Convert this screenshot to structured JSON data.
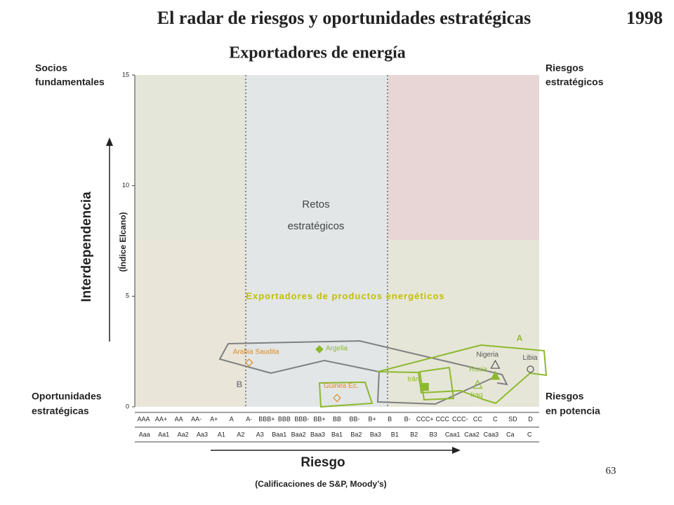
{
  "chart_data": {
    "type": "scatter",
    "title": "El radar de riesgos y oportunidades estratégicas",
    "year": "1998",
    "subtitle": "Exportadores de energía",
    "corner_labels": {
      "top_left": [
        "Socios",
        "fundamentales"
      ],
      "top_right": [
        "Riesgos",
        "estratégicos"
      ],
      "bottom_left": [
        "Oportunidades",
        "estratégicas"
      ],
      "bottom_right": [
        "Riesgos",
        "en potencia"
      ]
    },
    "zone_label": [
      "Retos",
      "estratégicos"
    ],
    "group_label": "Exportadores de productos energéticos",
    "group_markers": [
      "A",
      "B"
    ],
    "y_label": "Interdependencia",
    "y_sublabel": "(Índice Elcano)",
    "x_label": "Riesgo",
    "x_sublabel": "(Calificaciones de S&P, Moody’s)",
    "page_number": "63",
    "categories": [
      "AAA",
      "AA+",
      "AA",
      "AA-",
      "A+",
      "A",
      "A-",
      "BBB+",
      "BBB",
      "BBB-",
      "BB+",
      "BB",
      "BB-",
      "B+",
      "B",
      "B-",
      "CCC+",
      "CCC",
      "CCC-",
      "CC",
      "C",
      "SD",
      "D"
    ],
    "categories_moodys": [
      "Aaa",
      "Aa1",
      "Aa2",
      "Aa3",
      "A1",
      "A2",
      "A3",
      "Baa1",
      "Baa2",
      "Baa3",
      "Ba1",
      "Ba2",
      "Ba3",
      "B1",
      "B2",
      "B3",
      "Caa1",
      "Caa2",
      "Caa3",
      "Ca",
      "C"
    ],
    "ylim": [
      0,
      15
    ],
    "yticks": [
      0,
      5,
      10,
      15
    ],
    "points": [
      {
        "name": "Arabia Saudita",
        "x": "A-",
        "y": 2.0,
        "marker": "diamond-open",
        "color": "#e08a1e"
      },
      {
        "name": "Argelia",
        "x": "BB+",
        "y": 2.6,
        "marker": "diamond",
        "color": "#8db92e"
      },
      {
        "name": "Guinea Ec.",
        "x": "BB",
        "y": 0.4,
        "marker": "diamond-open",
        "color": "#e08a1e"
      },
      {
        "name": "Irán",
        "x": "CCC+",
        "y": 0.9,
        "marker": "square",
        "color": "#8db92e"
      },
      {
        "name": "Nigeria",
        "x": "C",
        "y": 1.9,
        "marker": "triangle-open",
        "color": "#555555"
      },
      {
        "name": "Rusia",
        "x": "C",
        "y": 1.4,
        "marker": "triangle",
        "color": "#8db92e"
      },
      {
        "name": "Iraq",
        "x": "CC",
        "y": 1.0,
        "marker": "triangle-open",
        "color": "#8db92e"
      },
      {
        "name": "Libia",
        "x": "D",
        "y": 1.7,
        "marker": "circle-open",
        "color": "#555555"
      }
    ]
  }
}
